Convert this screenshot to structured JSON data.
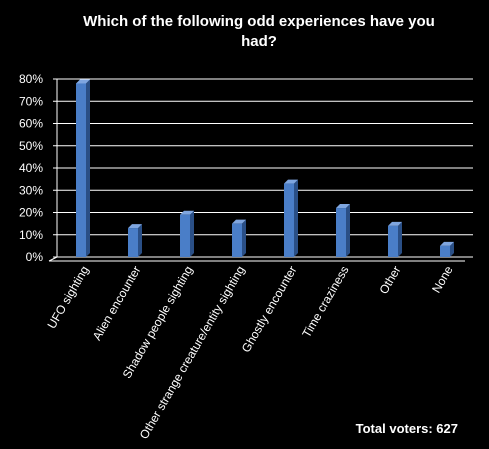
{
  "chart_data": {
    "type": "bar",
    "title_lines": [
      "Which of the following odd experiences have you",
      "had?"
    ],
    "categories": [
      "UFO sighting",
      "Alien encounter",
      "Shadow people sighting",
      "Other strange creature/entity sighting",
      "Ghostly encounter",
      "Time craziness",
      "Other",
      "None"
    ],
    "values": [
      78,
      13,
      19,
      15,
      33,
      22,
      14,
      5
    ],
    "unit": "%",
    "ylim": [
      0,
      80
    ],
    "yticks": [
      "0%",
      "10%",
      "20%",
      "30%",
      "40%",
      "50%",
      "60%",
      "70%",
      "80%"
    ],
    "grid": true,
    "bar_color": "#4a7ec8",
    "annotation": "Total voters: 627"
  }
}
